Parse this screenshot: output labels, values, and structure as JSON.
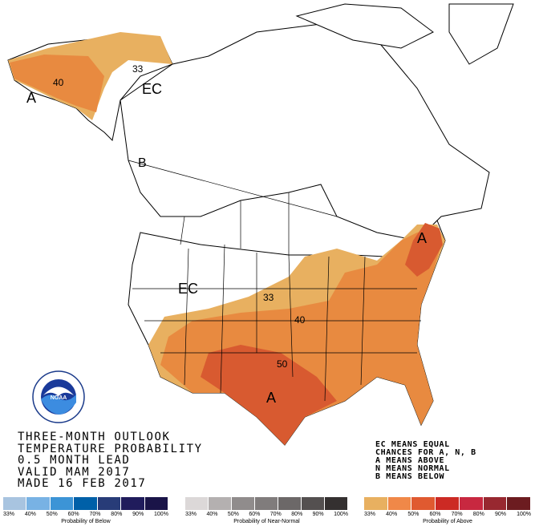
{
  "title_lines": [
    "THREE-MONTH OUTLOOK",
    "TEMPERATURE PROBABILITY",
    "0.5 MONTH LEAD",
    "VALID MAM 2017",
    "MADE 16 FEB 2017"
  ],
  "key_lines": [
    "EC MEANS EQUAL",
    "CHANCES FOR A, N, B",
    "A MEANS ABOVE",
    "N MEANS NORMAL",
    "B MEANS BELOW"
  ],
  "map_labels": {
    "ec_alaska": "EC",
    "ec_conus": "EC",
    "a_alaska": "A",
    "a_east": "A",
    "a_south": "A",
    "c33_alaska": "33",
    "c40_alaska": "40",
    "c33_conus": "33",
    "c40_conus": "40",
    "c50_conus": "50",
    "b_canada": "B"
  },
  "logo": {
    "text": "NOAA",
    "ring_text": "NATIONAL OCEANIC AND ATMOSPHERIC ADMINISTRATION · U.S. DEPARTMENT OF COMMERCE"
  },
  "legends": [
    {
      "label": "Probability of Below",
      "ticks": [
        "33%",
        "40%",
        "50%",
        "60%",
        "70%",
        "80%",
        "90%",
        "100%"
      ],
      "colors": [
        "#a8c4e0",
        "#78b2e4",
        "#3c94d6",
        "#0060a8",
        "#283c78",
        "#201c5c",
        "#1a1448"
      ]
    },
    {
      "label": "Probability of Near-Normal",
      "ticks": [
        "33%",
        "40%",
        "50%",
        "60%",
        "70%",
        "80%",
        "90%",
        "100%"
      ],
      "colors": [
        "#dcd8d8",
        "#b4b0b0",
        "#908c8c",
        "#807c7c",
        "#6c6868",
        "#545050",
        "#343030"
      ]
    },
    {
      "label": "Probability of Above",
      "ticks": [
        "33%",
        "40%",
        "50%",
        "60%",
        "70%",
        "80%",
        "90%",
        "100%"
      ],
      "colors": [
        "#e8b060",
        "#f08848",
        "#e05a30",
        "#cc2a24",
        "#c82840",
        "#982830",
        "#6c1c20"
      ]
    }
  ],
  "colors": {
    "above_33": "#e8b060",
    "above_40": "#e88a40",
    "above_50": "#d85a30"
  }
}
